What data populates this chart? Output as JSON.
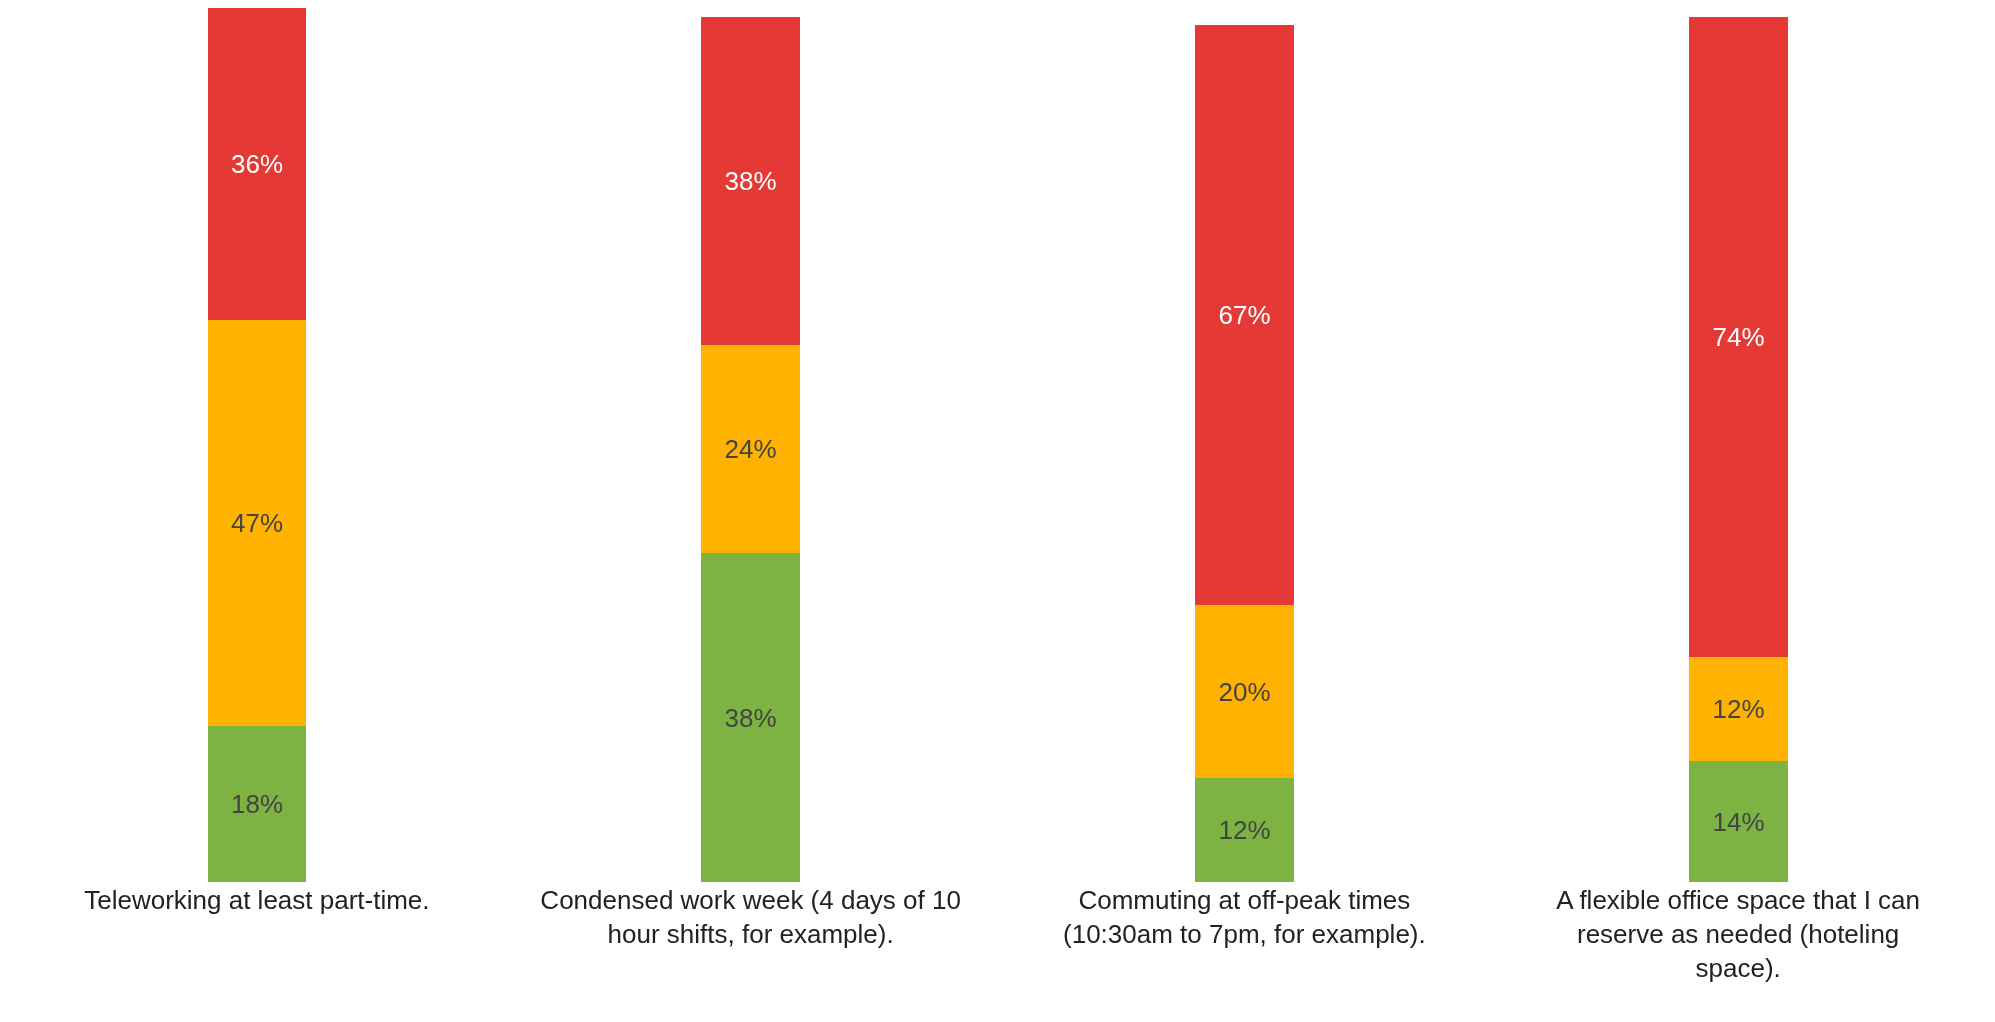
{
  "chart_data": {
    "type": "bar",
    "stacked": true,
    "categories": [
      "Teleworking at least part-time.",
      "Condensed work week (4 days of 10 hour shifts, for example).",
      "Commuting at off-peak times (10:30am to 7pm, for example).",
      "A flexible office space that I can reserve as needed (hoteling space)."
    ],
    "series": [
      {
        "color": "#7cb342",
        "values": [
          18,
          38,
          12,
          14
        ],
        "value_labels": [
          "18%",
          "38%",
          "12%",
          "14%"
        ]
      },
      {
        "color": "#ffb300",
        "values": [
          47,
          24,
          20,
          12
        ],
        "value_labels": [
          "47%",
          "24%",
          "20%",
          "12%"
        ]
      },
      {
        "color": "#e53935",
        "values": [
          36,
          38,
          67,
          74
        ],
        "value_labels": [
          "36%",
          "38%",
          "67%",
          "74%"
        ]
      }
    ]
  }
}
